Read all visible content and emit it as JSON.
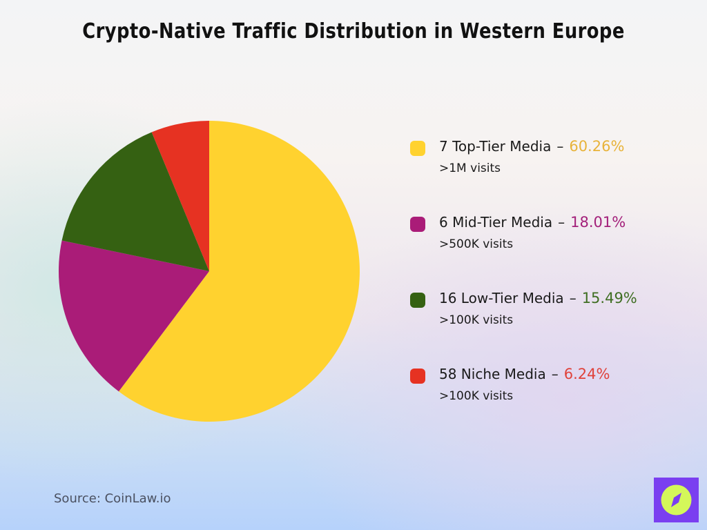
{
  "title": "Crypto-Native Traffic Distribution in Western Europe",
  "chart_data": {
    "type": "pie",
    "title": "Crypto-Native Traffic Distribution in Western Europe",
    "categories": [
      "7 Top-Tier Media",
      "6 Mid-Tier Media",
      "16 Low-Tier Media",
      "58 Niche Media"
    ],
    "values": [
      60.26,
      18.01,
      15.49,
      6.24
    ],
    "subtitles": [
      ">1M visits",
      ">500K visits",
      ">100K visits",
      ">100K visits"
    ],
    "colors": [
      "#ffd22f",
      "#aa1c78",
      "#356112",
      "#e63222"
    ],
    "start_angle": "12 o'clock, clockwise",
    "legend_position": "right",
    "center": [
      303,
      393
    ],
    "radius": 218
  },
  "legend": [
    {
      "label": "7 Top-Tier Media",
      "pct": "60.26%",
      "sub": ">1M visits",
      "color": "#ffd22f",
      "text_color": "#e8b33a"
    },
    {
      "label": "6 Mid-Tier Media",
      "pct": "18.01%",
      "sub": ">500K visits",
      "color": "#aa1c78",
      "text_color": "#a3207a"
    },
    {
      "label": "16 Low-Tier Media",
      "pct": "15.49%",
      "sub": ">100K visits",
      "color": "#356112",
      "text_color": "#3f6e22"
    },
    {
      "label": "58 Niche Media",
      "pct": "6.24%",
      "sub": ">100K visits",
      "color": "#e63222",
      "text_color": "#e0423a"
    }
  ],
  "legend_dash": "–",
  "source": "Source: CoinLaw.io",
  "logo": {
    "icon": "compass-icon",
    "bg": "#7a3ff0",
    "circle": "#d4f75a"
  }
}
